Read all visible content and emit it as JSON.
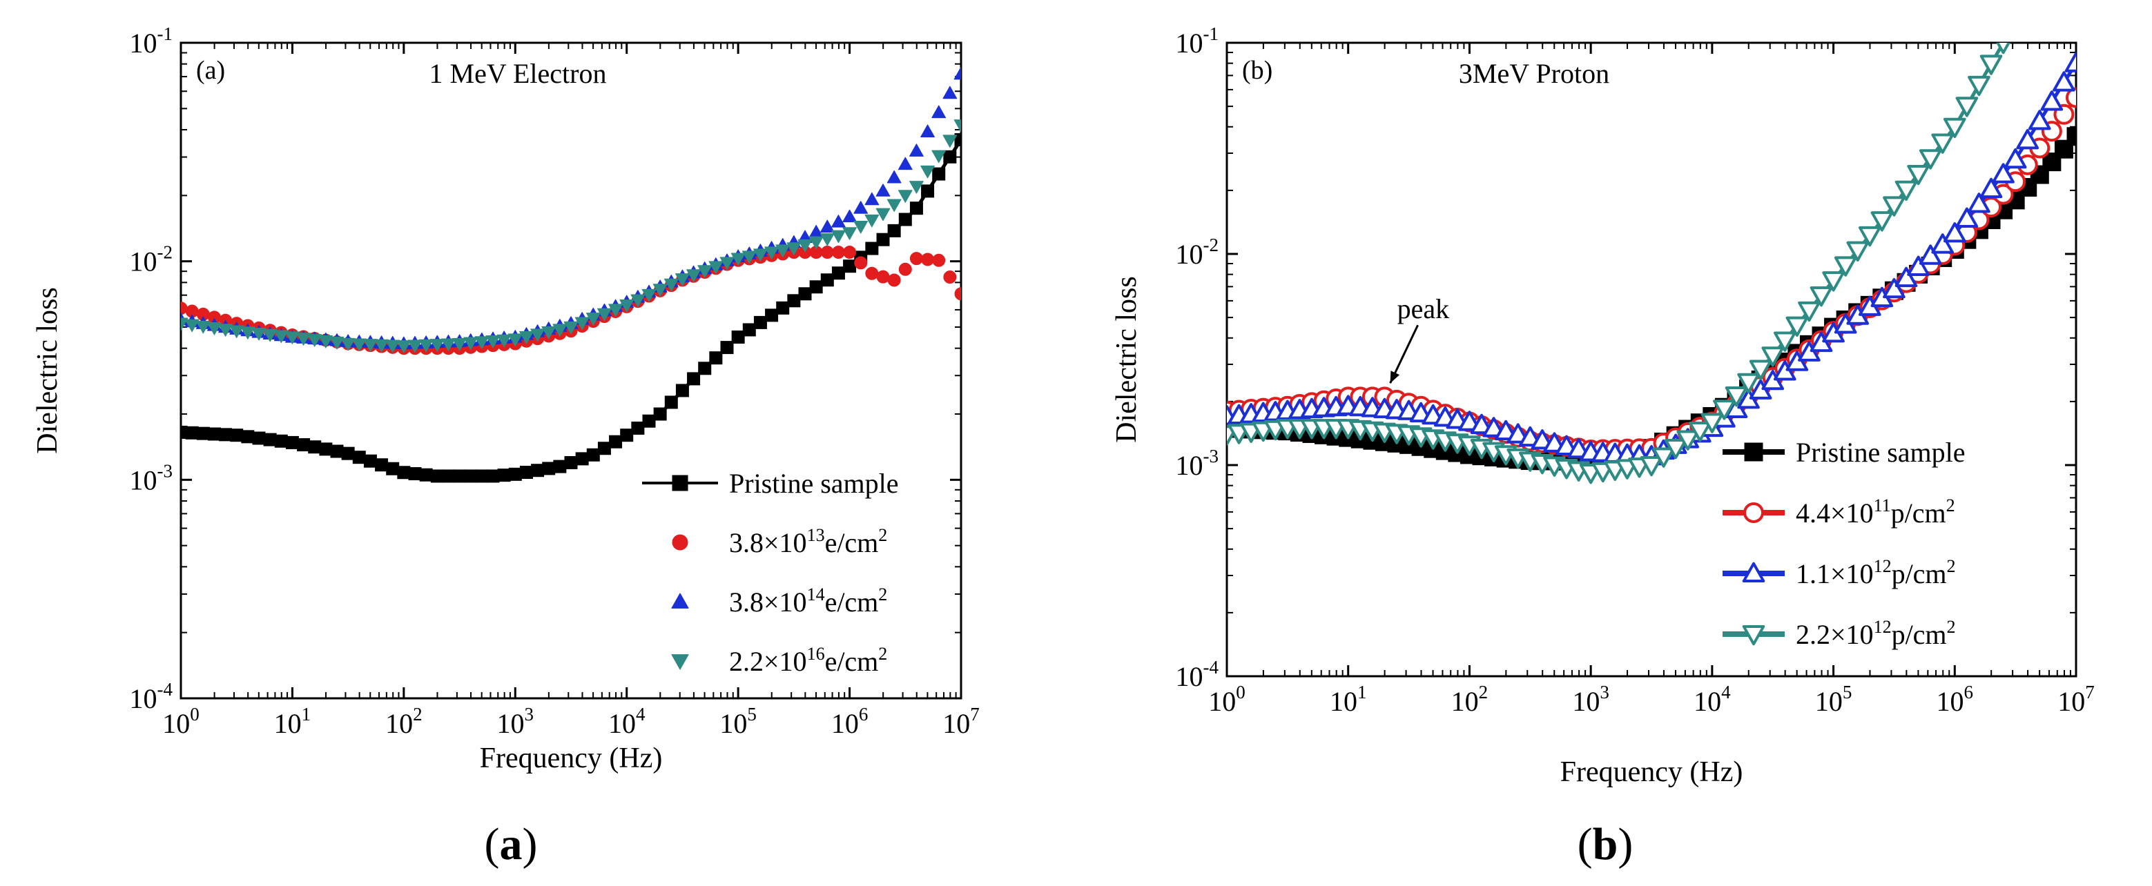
{
  "figure": {
    "captions": [
      "(a)",
      "(b)"
    ]
  },
  "chart_data": [
    {
      "type": "line",
      "panel_label": "(a)",
      "title": "1 MeV Electron",
      "xlabel": "Frequency (Hz)",
      "ylabel": "Dielectric loss",
      "xscale": "log",
      "yscale": "log",
      "xlim": [
        1,
        10000000
      ],
      "ylim": [
        0.0001,
        0.1
      ],
      "xticks": [
        {
          "base": "10",
          "exp": "0"
        },
        {
          "base": "10",
          "exp": "1"
        },
        {
          "base": "10",
          "exp": "2"
        },
        {
          "base": "10",
          "exp": "3"
        },
        {
          "base": "10",
          "exp": "4"
        },
        {
          "base": "10",
          "exp": "5"
        },
        {
          "base": "10",
          "exp": "6"
        },
        {
          "base": "10",
          "exp": "7"
        }
      ],
      "yticks": [
        {
          "base": "10",
          "exp": "-4"
        },
        {
          "base": "10",
          "exp": "-3"
        },
        {
          "base": "10",
          "exp": "-2"
        },
        {
          "base": "10",
          "exp": "-1"
        }
      ],
      "legend_position": "bottom-right",
      "series": [
        {
          "name": "Pristine sample",
          "legend": [
            "Pristine sample"
          ],
          "color": "#000000",
          "marker": "square",
          "line": true,
          "points": [
            [
              0,
              0.00165
            ],
            [
              0.5,
              0.0016
            ],
            [
              1,
              0.00148
            ],
            [
              1.5,
              0.00132
            ],
            [
              2,
              0.00108
            ],
            [
              2.3,
              0.00104
            ],
            [
              2.8,
              0.00104
            ],
            [
              3,
              0.00106
            ],
            [
              3.4,
              0.00115
            ],
            [
              3.7,
              0.0013
            ],
            [
              4,
              0.0016
            ],
            [
              4.3,
              0.002
            ],
            [
              4.6,
              0.0029
            ],
            [
              5,
              0.0045
            ],
            [
              5.5,
              0.0066
            ],
            [
              6,
              0.0095
            ],
            [
              6.4,
              0.0138
            ],
            [
              6.6,
              0.0175
            ],
            [
              7,
              0.036
            ]
          ]
        },
        {
          "name": "3.8×10^13 e/cm^2",
          "legend": [
            "3.8×10",
            "13",
            "e/cm",
            "2"
          ],
          "color": "#e11d1d",
          "marker": "circle",
          "line": false,
          "points": [
            [
              0,
              0.0061
            ],
            [
              0.5,
              0.0052
            ],
            [
              1,
              0.0046
            ],
            [
              1.5,
              0.0042
            ],
            [
              2,
              0.004
            ],
            [
              2.5,
              0.004
            ],
            [
              3,
              0.0042
            ],
            [
              3.5,
              0.0048
            ],
            [
              4,
              0.0062
            ],
            [
              4.5,
              0.0082
            ],
            [
              5,
              0.0101
            ],
            [
              5.5,
              0.011
            ],
            [
              6,
              0.011
            ],
            [
              6.2,
              0.0088
            ],
            [
              6.4,
              0.0082
            ],
            [
              6.6,
              0.0103
            ],
            [
              6.8,
              0.0101
            ],
            [
              7,
              0.0071
            ]
          ]
        },
        {
          "name": "3.8×10^14 e/cm^2",
          "legend": [
            "3.8×10",
            "14",
            "e/cm",
            "2"
          ],
          "color": "#1a2fd6",
          "marker": "triangle-up",
          "line": false,
          "points": [
            [
              0,
              0.0054
            ],
            [
              0.5,
              0.0049
            ],
            [
              1,
              0.0045
            ],
            [
              1.5,
              0.0043
            ],
            [
              2,
              0.0042
            ],
            [
              2.5,
              0.0043
            ],
            [
              3,
              0.0045
            ],
            [
              3.5,
              0.0052
            ],
            [
              4,
              0.0065
            ],
            [
              4.5,
              0.0085
            ],
            [
              5,
              0.0105
            ],
            [
              5.5,
              0.0122
            ],
            [
              6,
              0.016
            ],
            [
              6.3,
              0.021
            ],
            [
              6.6,
              0.032
            ],
            [
              7,
              0.072
            ]
          ]
        },
        {
          "name": "2.2×10^16 e/cm^2",
          "legend": [
            "2.2×10",
            "16",
            "e/cm",
            "2"
          ],
          "color": "#2e8b84",
          "marker": "triangle-down",
          "line": false,
          "points": [
            [
              0,
              0.0052
            ],
            [
              0.5,
              0.0048
            ],
            [
              1,
              0.0045
            ],
            [
              1.5,
              0.0042
            ],
            [
              2,
              0.0041
            ],
            [
              2.5,
              0.0042
            ],
            [
              3,
              0.0044
            ],
            [
              3.5,
              0.005
            ],
            [
              4,
              0.0063
            ],
            [
              4.5,
              0.0083
            ],
            [
              5,
              0.0103
            ],
            [
              5.5,
              0.0115
            ],
            [
              6,
              0.0135
            ],
            [
              6.3,
              0.0165
            ],
            [
              6.6,
              0.022
            ],
            [
              7,
              0.042
            ]
          ]
        }
      ]
    },
    {
      "type": "line",
      "panel_label": "(b)",
      "title": "3MeV Proton",
      "xlabel": "Frequency (Hz)",
      "ylabel": "Dielectric loss",
      "xscale": "log",
      "yscale": "log",
      "xlim": [
        1,
        10000000
      ],
      "ylim": [
        0.0001,
        0.1
      ],
      "xticks": [
        {
          "base": "10",
          "exp": "0"
        },
        {
          "base": "10",
          "exp": "1"
        },
        {
          "base": "10",
          "exp": "2"
        },
        {
          "base": "10",
          "exp": "3"
        },
        {
          "base": "10",
          "exp": "4"
        },
        {
          "base": "10",
          "exp": "5"
        },
        {
          "base": "10",
          "exp": "6"
        },
        {
          "base": "10",
          "exp": "7"
        }
      ],
      "yticks": [
        {
          "base": "10",
          "exp": "-4"
        },
        {
          "base": "10",
          "exp": "-3"
        },
        {
          "base": "10",
          "exp": "-2"
        },
        {
          "base": "10",
          "exp": "-1"
        }
      ],
      "legend_position": "bottom-right",
      "annotations": [
        {
          "text": "peak",
          "x": 20,
          "y": 0.0022
        }
      ],
      "series": [
        {
          "name": "Pristine sample",
          "legend": [
            "Pristine sample"
          ],
          "color": "#000000",
          "marker": "square",
          "line": true,
          "points": [
            [
              0,
              0.0015
            ],
            [
              0.5,
              0.00145
            ],
            [
              1,
              0.00135
            ],
            [
              1.5,
              0.00125
            ],
            [
              2,
              0.00112
            ],
            [
              2.5,
              0.00105
            ],
            [
              3,
              0.00104
            ],
            [
              3.5,
              0.0012
            ],
            [
              4,
              0.0017
            ],
            [
              4.5,
              0.0028
            ],
            [
              5,
              0.0045
            ],
            [
              5.5,
              0.0067
            ],
            [
              6,
              0.0105
            ],
            [
              6.5,
              0.018
            ],
            [
              7,
              0.036
            ]
          ]
        },
        {
          "name": "4.4×10^11 p/cm^2",
          "legend": [
            "4.4×10",
            "11",
            "p/cm",
            "2"
          ],
          "color": "#e11d1d",
          "marker": "circle",
          "line": true,
          "points": [
            [
              0,
              0.0018
            ],
            [
              0.5,
              0.0019
            ],
            [
              1,
              0.0021
            ],
            [
              1.3,
              0.0021
            ],
            [
              1.6,
              0.0019
            ],
            [
              2,
              0.0016
            ],
            [
              2.5,
              0.0013
            ],
            [
              3,
              0.00118
            ],
            [
              3.5,
              0.0012
            ],
            [
              4,
              0.0016
            ],
            [
              4.5,
              0.0026
            ],
            [
              5,
              0.0043
            ],
            [
              5.5,
              0.0066
            ],
            [
              6,
              0.011
            ],
            [
              6.5,
              0.022
            ],
            [
              7,
              0.055
            ]
          ]
        },
        {
          "name": "1.1×10^12 p/cm^2",
          "legend": [
            "1.1×10",
            "12",
            "p/cm",
            "2"
          ],
          "color": "#1a2fd6",
          "marker": "triangle-up",
          "line": true,
          "points": [
            [
              0,
              0.0017
            ],
            [
              0.5,
              0.0018
            ],
            [
              1,
              0.0019
            ],
            [
              1.5,
              0.0018
            ],
            [
              2,
              0.0016
            ],
            [
              2.5,
              0.00135
            ],
            [
              3,
              0.00115
            ],
            [
              3.5,
              0.0011
            ],
            [
              4,
              0.0015
            ],
            [
              4.5,
              0.0025
            ],
            [
              5,
              0.0042
            ],
            [
              5.5,
              0.0068
            ],
            [
              6,
              0.0125
            ],
            [
              6.5,
              0.028
            ],
            [
              7,
              0.08
            ]
          ]
        },
        {
          "name": "2.2×10^12 p/cm^2",
          "legend": [
            "2.2×10",
            "12",
            "p/cm",
            "2"
          ],
          "color": "#2e8b84",
          "marker": "triangle-down",
          "line": true,
          "points": [
            [
              0,
              0.0014
            ],
            [
              0.5,
              0.0015
            ],
            [
              1,
              0.0015
            ],
            [
              1.5,
              0.0014
            ],
            [
              2,
              0.00125
            ],
            [
              2.5,
              0.00105
            ],
            [
              3,
              0.00092
            ],
            [
              3.5,
              0.001
            ],
            [
              4,
              0.0016
            ],
            [
              4.5,
              0.0033
            ],
            [
              5,
              0.0075
            ],
            [
              5.5,
              0.017
            ],
            [
              6,
              0.04
            ],
            [
              6.4,
              0.1
            ]
          ]
        }
      ]
    }
  ]
}
